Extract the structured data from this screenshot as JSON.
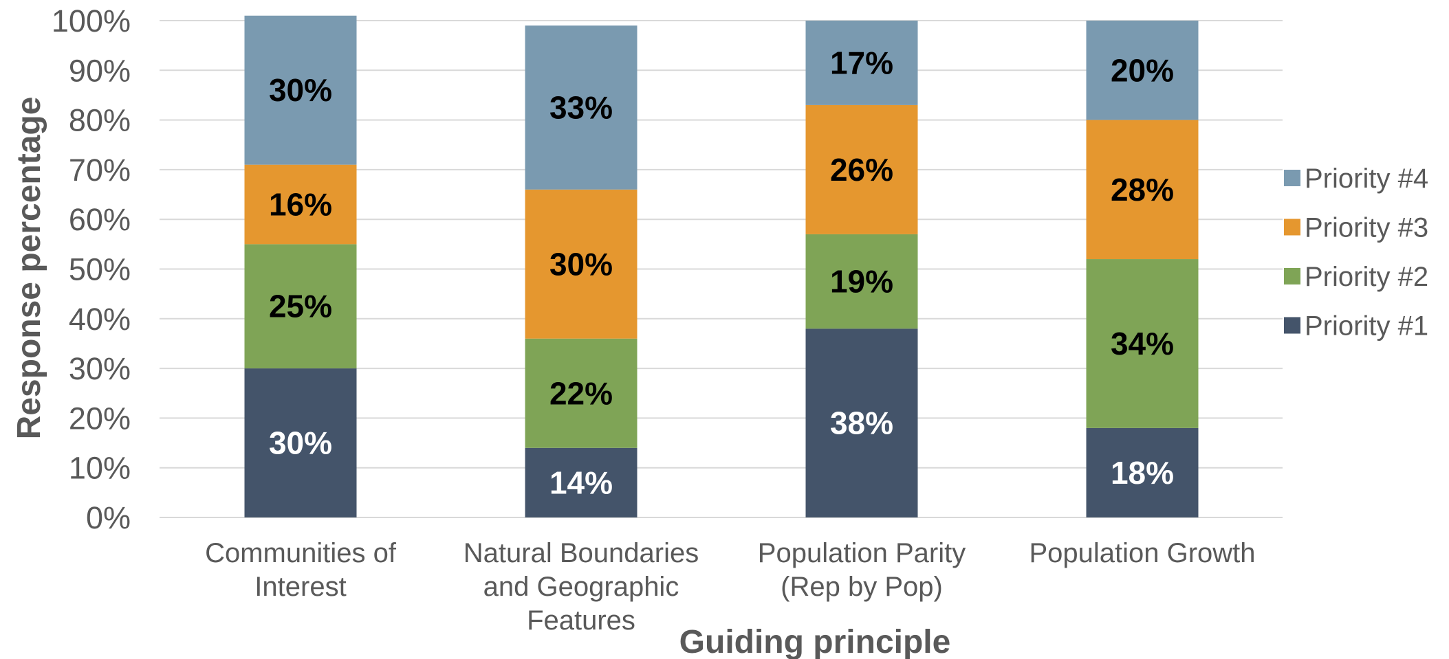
{
  "chart_data": {
    "type": "bar",
    "stacked": true,
    "percent_stacked": true,
    "title": "",
    "xlabel": "Guiding principle",
    "ylabel": "Response percentage",
    "ylim": [
      0,
      100
    ],
    "yticks": [
      "0%",
      "10%",
      "20%",
      "30%",
      "40%",
      "50%",
      "60%",
      "70%",
      "80%",
      "90%",
      "100%"
    ],
    "grid": true,
    "legend_position": "right",
    "categories": [
      [
        "Communities of",
        "Interest"
      ],
      [
        "Natural Boundaries",
        "and Geographic",
        "Features"
      ],
      [
        "Population Parity",
        "(Rep by Pop)"
      ],
      [
        "Population Growth"
      ]
    ],
    "series": [
      {
        "name": "Priority #1",
        "color": "#44546a",
        "label_color": "#ffffff",
        "values": [
          30,
          14,
          38,
          18
        ],
        "labels": [
          "30%",
          "14%",
          "38%",
          "18%"
        ]
      },
      {
        "name": "Priority #2",
        "color": "#7fa456",
        "label_color": "#000000",
        "values": [
          25,
          22,
          19,
          34
        ],
        "labels": [
          "25%",
          "22%",
          "19%",
          "34%"
        ]
      },
      {
        "name": "Priority #3",
        "color": "#e5972f",
        "label_color": "#000000",
        "values": [
          16,
          30,
          26,
          28
        ],
        "labels": [
          "16%",
          "30%",
          "26%",
          "28%"
        ]
      },
      {
        "name": "Priority #4",
        "color": "#7a9ab0",
        "label_color": "#000000",
        "values": [
          30,
          33,
          17,
          20
        ],
        "labels": [
          "30%",
          "33%",
          "17%",
          "20%"
        ]
      }
    ]
  }
}
